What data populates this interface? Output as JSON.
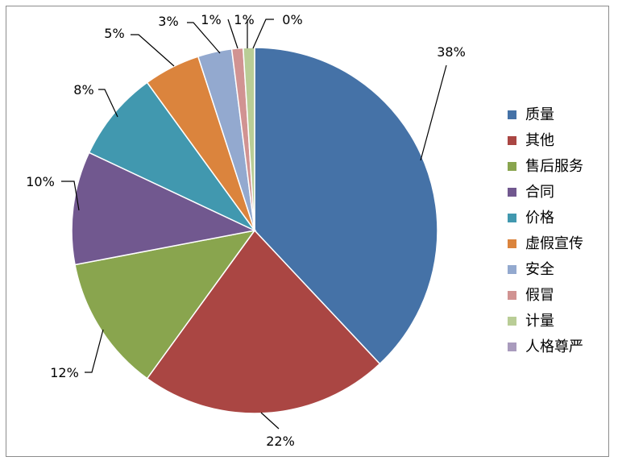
{
  "chart_data": {
    "type": "pie",
    "title": "",
    "legend_position": "right",
    "slices": [
      {
        "name": "质量",
        "value": 38,
        "label": "38%",
        "color": "#4572A7"
      },
      {
        "name": "其他",
        "value": 22,
        "label": "22%",
        "color": "#AA4643"
      },
      {
        "name": "售后服务",
        "value": 12,
        "label": "12%",
        "color": "#89A54E"
      },
      {
        "name": "合同",
        "value": 10,
        "label": "10%",
        "color": "#71588F"
      },
      {
        "name": "价格",
        "value": 8,
        "label": "8%",
        "color": "#4198AF"
      },
      {
        "name": "虚假宣传",
        "value": 5,
        "label": "5%",
        "color": "#DB843D"
      },
      {
        "name": "安全",
        "value": 3,
        "label": "3%",
        "color": "#93A9CF"
      },
      {
        "name": "假冒",
        "value": 1,
        "label": "1%",
        "color": "#D19392"
      },
      {
        "name": "计量",
        "value": 1,
        "label": "1%",
        "color": "#B9CD96"
      },
      {
        "name": "人格尊严",
        "value": 0,
        "label": "0%",
        "color": "#A99BBD"
      }
    ]
  }
}
